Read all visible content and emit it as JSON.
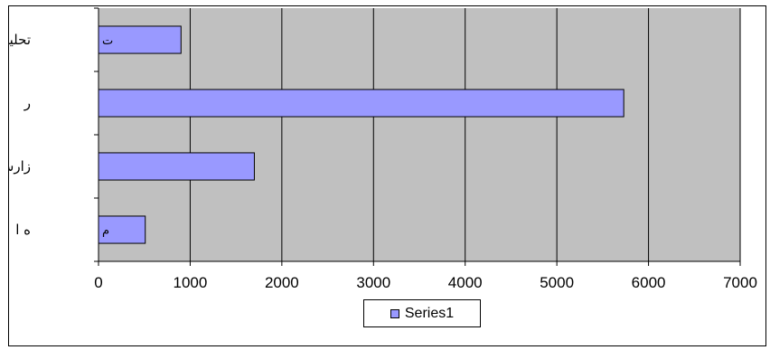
{
  "chart_data": {
    "type": "bar",
    "orientation": "horizontal",
    "categories": [
      "تحليل",
      "ر",
      "زارش",
      "ه  ا"
    ],
    "bar_labels": [
      "ت",
      "",
      "",
      "م"
    ],
    "series": [
      {
        "name": "Series1",
        "values": [
          900,
          5730,
          1700,
          510
        ]
      }
    ],
    "xlim": [
      0,
      7000
    ],
    "xticks": [
      "0",
      "1000",
      "2000",
      "3000",
      "4000",
      "5000",
      "6000",
      "7000"
    ],
    "grid": true,
    "legend_position": "bottom",
    "colors": {
      "bar_fill": "#9999ff",
      "plot_background": "#c0c0c0",
      "gridline": "#000000"
    }
  }
}
